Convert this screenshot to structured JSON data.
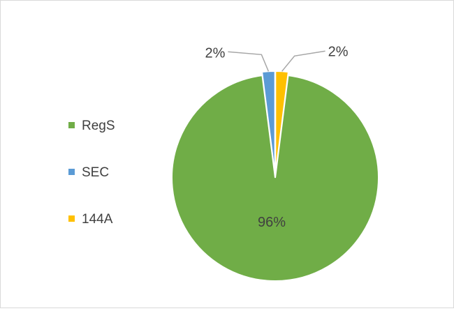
{
  "chart_data": {
    "type": "pie",
    "categories": [
      "RegS",
      "SEC",
      "144A"
    ],
    "values": [
      96,
      2,
      2
    ],
    "data_labels": [
      "96%",
      "2%",
      "2%"
    ],
    "colors": [
      "#70ad47",
      "#5b9bd5",
      "#ffc000"
    ],
    "exploded": [
      false,
      true,
      true
    ],
    "legend_position": "left",
    "title": ""
  }
}
